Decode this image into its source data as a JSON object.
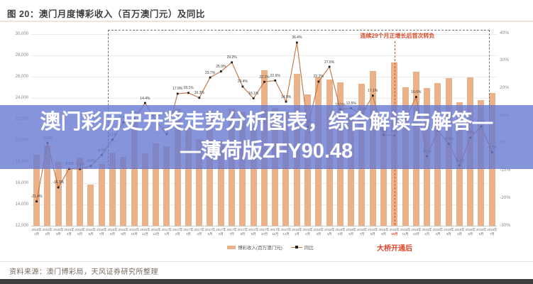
{
  "header": {
    "title": "图 20：澳门月度博彩收入（百万澳门元）及同比"
  },
  "overlay": {
    "line1": "澳门彩历史开奖走势分析图表，综合解读与解答—",
    "line2": "—薄荷版ZFY90.48",
    "band_color": "#687bd2cc",
    "text_color": "#ffffff"
  },
  "annotations": {
    "box_label": "连续29个月正增长后首次转负",
    "bridge_label": "大桥开通后",
    "highlight_month_index": 33
  },
  "legend": {
    "bar": "博彩收入(百万澳门元)",
    "line": "同比"
  },
  "footer": {
    "source": "资料来源：澳门博彩局，天风证券研究所整理"
  },
  "chart_data": {
    "type": "bar",
    "title": "澳门月度博彩收入（百万澳门元）及同比",
    "categories": [
      {
        "y": "2016年",
        "m": "1月"
      },
      {
        "y": "2016年",
        "m": "2月"
      },
      {
        "y": "2016年",
        "m": "3月"
      },
      {
        "y": "2016年",
        "m": "4月"
      },
      {
        "y": "2016年",
        "m": "5月"
      },
      {
        "y": "2016年",
        "m": "6月"
      },
      {
        "y": "2016年",
        "m": "7月"
      },
      {
        "y": "2016年",
        "m": "8月"
      },
      {
        "y": "2016年",
        "m": "9月"
      },
      {
        "y": "2016年",
        "m": "10月"
      },
      {
        "y": "2016年",
        "m": "11月"
      },
      {
        "y": "2016年",
        "m": "12月"
      },
      {
        "y": "2017年",
        "m": "1月"
      },
      {
        "y": "2017年",
        "m": "2月"
      },
      {
        "y": "2017年",
        "m": "3月"
      },
      {
        "y": "2017年",
        "m": "4月"
      },
      {
        "y": "2017年",
        "m": "5月"
      },
      {
        "y": "2017年",
        "m": "6月"
      },
      {
        "y": "2017年",
        "m": "7月"
      },
      {
        "y": "2017年",
        "m": "8月"
      },
      {
        "y": "2017年",
        "m": "9月"
      },
      {
        "y": "2017年",
        "m": "10月"
      },
      {
        "y": "2017年",
        "m": "11月"
      },
      {
        "y": "2017年",
        "m": "12月"
      },
      {
        "y": "2018年",
        "m": "1月"
      },
      {
        "y": "2018年",
        "m": "2月"
      },
      {
        "y": "2018年",
        "m": "3月"
      },
      {
        "y": "2018年",
        "m": "4月"
      },
      {
        "y": "2018年",
        "m": "5月"
      },
      {
        "y": "2018年",
        "m": "6月"
      },
      {
        "y": "2018年",
        "m": "7月"
      },
      {
        "y": "2018年",
        "m": "8月"
      },
      {
        "y": "2018年",
        "m": "9月"
      },
      {
        "y": "2018年",
        "m": "10月"
      },
      {
        "y": "2018年",
        "m": "11月"
      },
      {
        "y": "2018年",
        "m": "12月"
      },
      {
        "y": "2019年",
        "m": "1月"
      },
      {
        "y": "2019年",
        "m": "2月"
      },
      {
        "y": "2019年",
        "m": "3月"
      },
      {
        "y": "2019年",
        "m": "4月"
      },
      {
        "y": "2019年",
        "m": "5月"
      },
      {
        "y": "2019年",
        "m": "6月"
      },
      {
        "y": "2019年",
        "m": "7月"
      }
    ],
    "series": [
      {
        "name": "博彩收入(百万澳门元)",
        "type": "bar",
        "color": "#ebb189",
        "values": [
          18674,
          19521,
          17980,
          17340,
          18389,
          15885,
          17774,
          18837,
          18434,
          21818,
          18785,
          19743,
          19455,
          22989,
          21224,
          20164,
          22743,
          19992,
          22968,
          22676,
          21408,
          26631,
          23038,
          22678,
          26265,
          24308,
          25952,
          25727,
          25488,
          22490,
          25327,
          26560,
          21952,
          27328,
          24995,
          26468,
          24942,
          25370,
          25840,
          23588,
          25952,
          23812,
          24453
        ]
      },
      {
        "name": "同比",
        "type": "line",
        "color": "#c57b4a",
        "marker_color": "#222222",
        "values": [
          -21.4,
          -0.1,
          -16.3,
          -9.5,
          -9.6,
          -8.5,
          -4.5,
          1.1,
          7.4,
          8.8,
          14.4,
          8.0,
          3.1,
          17.8,
          18.1,
          16.3,
          23.7,
          25.9,
          29.2,
          20.4,
          16.1,
          22.1,
          22.6,
          14.9,
          36.4,
          5.7,
          22.2,
          27.6,
          12.1,
          12.5,
          10.3,
          17.1,
          2.8,
          2.6,
          8.5,
          16.6,
          -5.0,
          4.4,
          -0.4,
          -8.3,
          1.8,
          5.9,
          -3.5
        ]
      }
    ],
    "left_axis": {
      "min": 12000,
      "max": 30000,
      "values": [
        30000,
        28000,
        26000,
        24000,
        22000,
        20000,
        18000,
        16000,
        14000,
        12000
      ],
      "ticks": [
        "30,000",
        "28,000",
        "26,000",
        "24,000",
        "22,000",
        "20,000",
        "18,000",
        "16,000",
        "14,000",
        "12,000"
      ]
    },
    "right_axis": {
      "min": -30,
      "max": 40,
      "values": [
        40,
        30,
        20,
        10,
        0,
        -10,
        -20,
        -30
      ],
      "ticks": [
        "40%",
        "30%",
        "20%",
        "10%",
        "0%",
        "-10%",
        "-20%",
        "-30%"
      ]
    },
    "grid": true,
    "legend_position": "bottom"
  }
}
